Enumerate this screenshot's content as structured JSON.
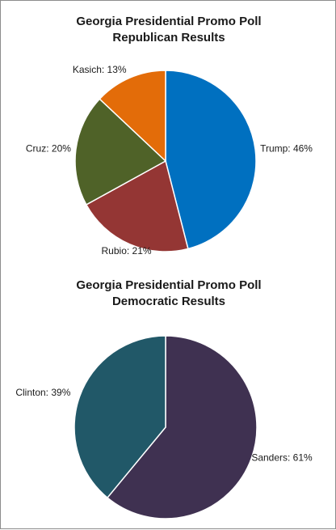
{
  "chart_data": [
    {
      "type": "pie",
      "title": "Georgia Presidential Promo Poll",
      "subtitle": "Republican Results",
      "start_angle_deg": 0,
      "categories": [
        "Trump",
        "Rubio",
        "Cruz",
        "Kasich"
      ],
      "values": [
        46,
        21,
        20,
        13
      ],
      "colors": [
        "#0070c0",
        "#943634",
        "#4f6228",
        "#e36c09"
      ],
      "labels": [
        "Trump: 46%",
        "Rubio: 21%",
        "Cruz: 20%",
        "Kasich: 13%"
      ],
      "unit": "%",
      "legend": "none (data labels outside slices)"
    },
    {
      "type": "pie",
      "title": "Georgia Presidential Promo Poll",
      "subtitle": "Democratic Results",
      "start_angle_deg": 0,
      "categories": [
        "Sanders",
        "Clinton"
      ],
      "values": [
        61,
        39
      ],
      "colors": [
        "#3f3151",
        "#215868"
      ],
      "labels": [
        "Sanders: 61%",
        "Clinton: 39%"
      ],
      "unit": "%",
      "legend": "none (data labels outside slices)"
    }
  ]
}
